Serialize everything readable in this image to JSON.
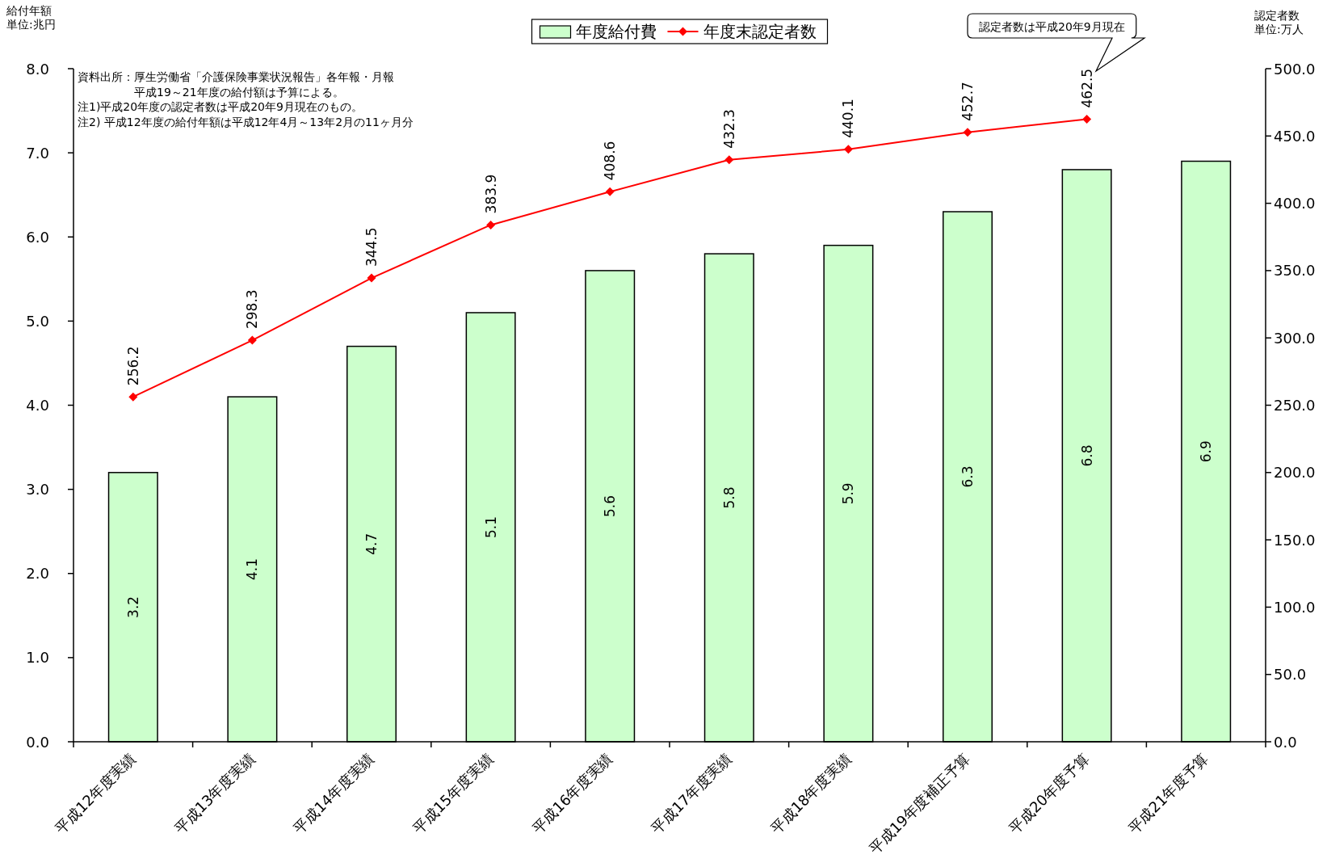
{
  "chart_data": {
    "type": "bar",
    "ylabel": "給付年額",
    "y2label": "認定者数",
    "categories": [
      "平成12年度実績",
      "平成13年度実績",
      "平成14年度実績",
      "平成15年度実績",
      "平成16年度実績",
      "平成17年度実績",
      "平成18年度実績",
      "平成19年度補正予算",
      "平成20年度予算",
      "平成21年度予算"
    ],
    "series": [
      {
        "name": "年度給付費",
        "color": "#ccffcc",
        "values": [
          3.2,
          4.1,
          4.7,
          5.1,
          5.6,
          5.8,
          5.9,
          6.3,
          6.8,
          6.9
        ]
      },
      {
        "name": "年度末認定者数",
        "type": "line",
        "axis": "y2",
        "color": "#ff0000",
        "marker": "diamond",
        "values": [
          256.2,
          298.3,
          344.5,
          383.9,
          408.6,
          432.3,
          440.1,
          452.7,
          462.5,
          null
        ]
      }
    ],
    "data_labels": true,
    "ylim": [
      0,
      8
    ],
    "yticks": [
      {
        "value": 0,
        "label": "0.0"
      },
      {
        "value": 1,
        "label": "1.0"
      },
      {
        "value": 2,
        "label": "2.0"
      },
      {
        "value": 3,
        "label": "3.0"
      },
      {
        "value": 4,
        "label": "4.0"
      },
      {
        "value": 5,
        "label": "5.0"
      },
      {
        "value": 6,
        "label": "6.0"
      },
      {
        "value": 7,
        "label": "7.0"
      },
      {
        "value": 8,
        "label": "8.0"
      }
    ],
    "y2lim": [
      0,
      500
    ],
    "y2ticks": [
      {
        "value": 0,
        "label": "0.0"
      },
      {
        "value": 50,
        "label": "50.0"
      },
      {
        "value": 100,
        "label": "100.0"
      },
      {
        "value": 150,
        "label": "150.0"
      },
      {
        "value": 200,
        "label": "200.0"
      },
      {
        "value": 250,
        "label": "250.0"
      },
      {
        "value": 300,
        "label": "300.0"
      },
      {
        "value": 350,
        "label": "350.0"
      },
      {
        "value": 400,
        "label": "400.0"
      },
      {
        "value": 450,
        "label": "450.0"
      },
      {
        "value": 500,
        "label": "500.0"
      }
    ],
    "grid": false,
    "legend": "top",
    "annotations": [
      "資料出所：厚生労働省「介護保険事業状況報告」各年報・月報",
      "平成19～21年度の給付額は予算による。",
      "注1)平成20年度の認定者数は平成20年9月現在のもの。",
      "注2) 平成12年度の給付年額は平成12年4月～13年2月の11ヶ月分",
      "認定者数は平成20年9月現在",
      "単位:兆円",
      "単位:万人"
    ]
  }
}
